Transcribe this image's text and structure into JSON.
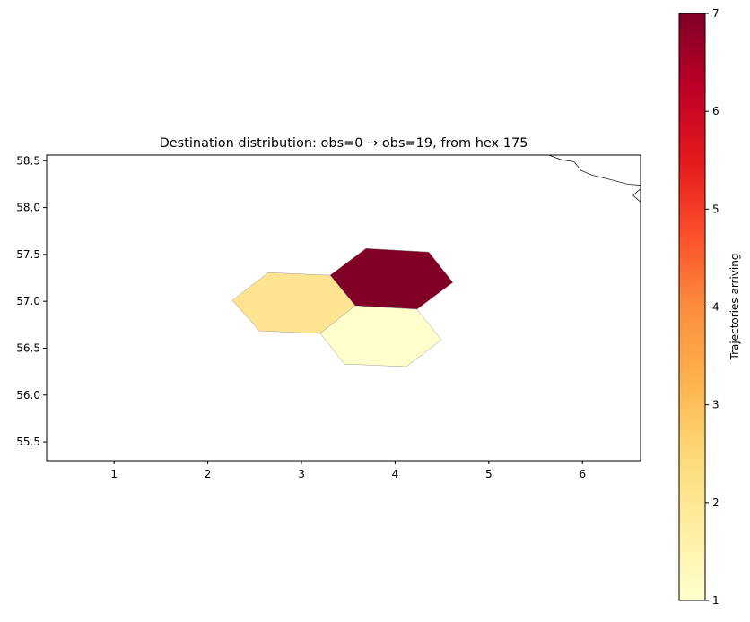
{
  "chart_data": {
    "type": "map",
    "title": "Destination distribution: obs=0 → obs=19, from hex 175",
    "xlim": [
      0.28,
      6.62
    ],
    "ylim": [
      55.3,
      58.56
    ],
    "xticks": [
      1,
      2,
      3,
      4,
      5,
      6
    ],
    "yticks": [
      55.5,
      56.0,
      56.5,
      57.0,
      57.5,
      58.0,
      58.5
    ],
    "ytick_labels": [
      "55.5",
      "56.0",
      "56.5",
      "57.0",
      "57.5",
      "58.0",
      "58.5"
    ],
    "hexes": [
      {
        "value": 7,
        "color": "#800026",
        "vertices": [
          [
            3.306,
            57.278
          ],
          [
            3.689,
            57.564
          ],
          [
            4.359,
            57.526
          ],
          [
            4.617,
            57.201
          ],
          [
            4.234,
            56.915
          ],
          [
            3.574,
            56.953
          ]
        ]
      },
      {
        "value": 2,
        "color": "#fee391",
        "vertices": [
          [
            2.263,
            57.01
          ],
          [
            2.646,
            57.306
          ],
          [
            3.306,
            57.278
          ],
          [
            3.574,
            56.953
          ],
          [
            3.201,
            56.657
          ],
          [
            2.55,
            56.685
          ]
        ]
      },
      {
        "value": 1,
        "color": "#ffffcc",
        "vertices": [
          [
            3.201,
            56.657
          ],
          [
            3.574,
            56.953
          ],
          [
            4.234,
            56.915
          ],
          [
            4.493,
            56.59
          ],
          [
            4.12,
            56.303
          ],
          [
            3.459,
            56.332
          ]
        ]
      }
    ],
    "coastlines": [
      [
        [
          5.641,
          58.56
        ],
        [
          5.775,
          58.51
        ],
        [
          5.909,
          58.49
        ],
        [
          5.986,
          58.395
        ],
        [
          6.1,
          58.347
        ],
        [
          6.292,
          58.3
        ],
        [
          6.483,
          58.25
        ],
        [
          6.62,
          58.24
        ]
      ],
      [
        [
          6.62,
          58.2
        ],
        [
          6.54,
          58.13
        ],
        [
          6.62,
          58.06
        ]
      ]
    ],
    "colorbar": {
      "label": "Trajectories arriving",
      "min": 1,
      "max": 7,
      "ticks": [
        1,
        2,
        3,
        4,
        5,
        6,
        7
      ],
      "colormap": [
        "#ffffcc",
        "#ffeda0",
        "#fed976",
        "#feb24c",
        "#fd8d3c",
        "#fc4e2a",
        "#e31a1c",
        "#bd0026",
        "#800026"
      ]
    }
  }
}
